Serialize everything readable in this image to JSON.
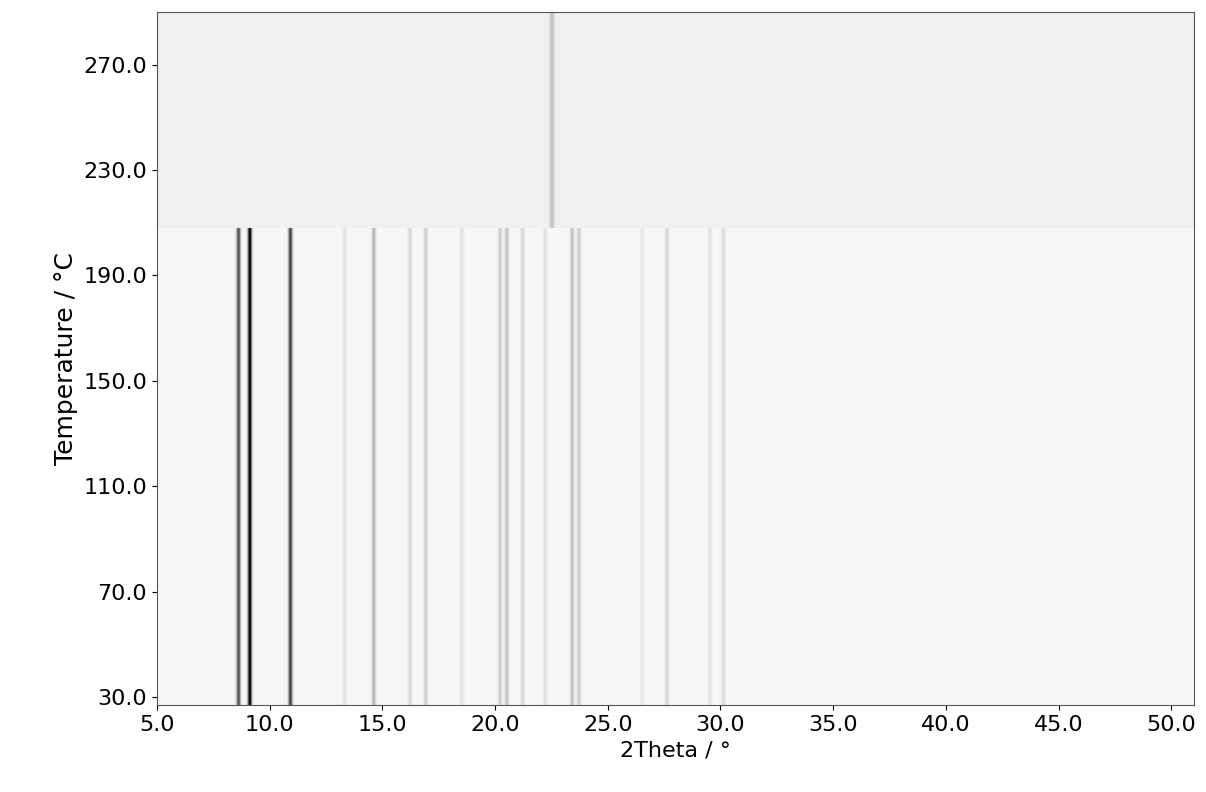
{
  "chart_data": {
    "type": "heatmap",
    "xlabel": "2Theta / °",
    "ylabel": "Temperature / °C",
    "color": "Greys",
    "xlim": [
      5,
      51
    ],
    "ylim": [
      27,
      290
    ],
    "xticks": [
      {
        "value": 5,
        "label": "5.0"
      },
      {
        "value": 10,
        "label": "10.0"
      },
      {
        "value": 15,
        "label": "15.0"
      },
      {
        "value": 20,
        "label": "20.0"
      },
      {
        "value": 25,
        "label": "25.0"
      },
      {
        "value": 30,
        "label": "30.0"
      },
      {
        "value": 35,
        "label": "35.0"
      },
      {
        "value": 40,
        "label": "40.0"
      },
      {
        "value": 45,
        "label": "45.0"
      },
      {
        "value": 50,
        "label": "50.0"
      }
    ],
    "yticks": [
      {
        "value": 30,
        "label": "30.0"
      },
      {
        "value": 70,
        "label": "70.0"
      },
      {
        "value": 110,
        "label": "110.0"
      },
      {
        "value": 150,
        "label": "150.0"
      },
      {
        "value": 190,
        "label": "190.0"
      },
      {
        "value": 230,
        "label": "230.0"
      },
      {
        "value": 270,
        "label": "270.0"
      }
    ],
    "intensity_range": [
      0,
      100
    ],
    "phases": [
      {
        "temperature_range": [
          27,
          208
        ],
        "background": 6,
        "peaks": [
          8.6,
          9.1,
          10.9,
          13.3,
          14.6,
          16.2,
          16.9,
          18.5,
          20.2,
          20.5,
          21.2,
          22.2,
          23.4,
          23.7,
          26.5,
          27.6,
          29.5,
          30.1
        ],
        "intensities": [
          70,
          95,
          75,
          15,
          35,
          20,
          25,
          15,
          25,
          30,
          20,
          15,
          30,
          25,
          12,
          20,
          15,
          18
        ]
      },
      {
        "temperature_range": [
          208,
          290
        ],
        "background": 12,
        "peaks": [
          22.5
        ],
        "intensities": [
          25
        ]
      }
    ]
  }
}
